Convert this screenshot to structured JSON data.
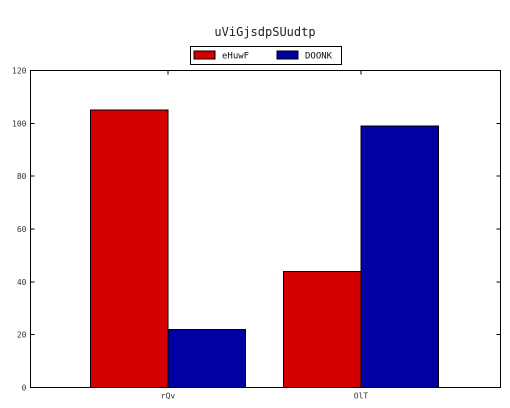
{
  "chart_data": {
    "type": "bar",
    "title": "uViGjsdpSUudtp",
    "categories": [
      "rQv",
      "OlT"
    ],
    "series": [
      {
        "name": "eHuwF",
        "values": [
          105,
          44
        ],
        "color": "#d40000"
      },
      {
        "name": "DOONK",
        "values": [
          22,
          99
        ],
        "color": "#0000a3"
      }
    ],
    "ylim": [
      0,
      120
    ],
    "yticks": [
      0,
      20,
      40,
      60,
      80,
      100,
      120
    ],
    "legend_position": "top-center",
    "grid": false
  }
}
